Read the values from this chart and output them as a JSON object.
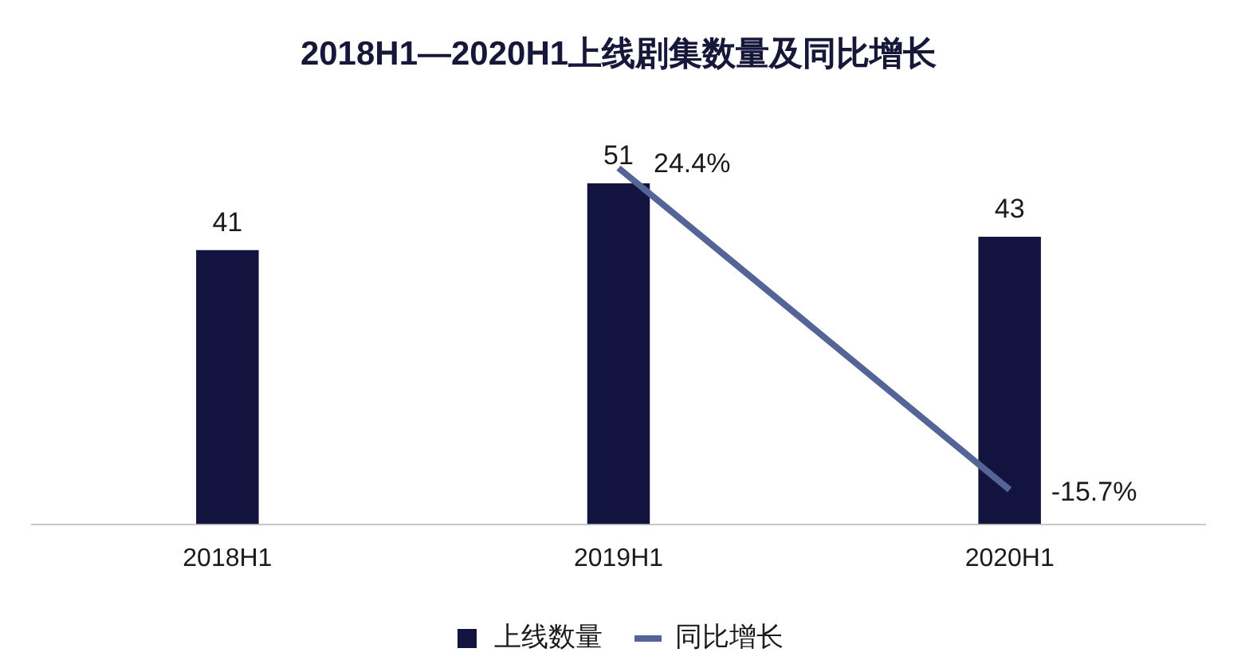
{
  "chart_data": {
    "type": "bar",
    "title": "2018H1—2020H1上线剧集数量及同比增长",
    "categories": [
      "2018H1",
      "2019H1",
      "2020H1"
    ],
    "series": [
      {
        "name": "上线数量",
        "color": "#12143f",
        "values": [
          41,
          51,
          43
        ]
      },
      {
        "name": "同比增长",
        "type": "line",
        "axis": "y2",
        "color": "#546496",
        "values": [
          null,
          24.4,
          -15.7
        ],
        "value_labels": [
          null,
          "24.4%",
          "-15.7%"
        ]
      }
    ],
    "tick_labels": "x",
    "data_labels": true,
    "legend": "bottom",
    "marker": "none"
  }
}
